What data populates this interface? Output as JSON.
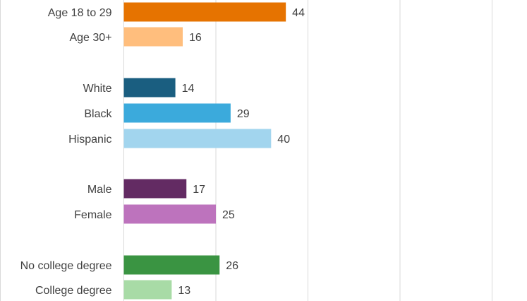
{
  "chart_data": {
    "type": "bar",
    "orientation": "horizontal",
    "title": "",
    "xlabel": "",
    "ylabel": "",
    "xlim": [
      0,
      100
    ],
    "grid": true,
    "legend": "none",
    "categories": [
      "Age 18 to 29",
      "Age 30+",
      "White",
      "Black",
      "Hispanic",
      "Male",
      "Female",
      "No college degree",
      "College degree"
    ],
    "values": [
      44,
      16,
      14,
      29,
      40,
      17,
      25,
      26,
      13
    ],
    "value_labels": [
      "44",
      "16",
      "14",
      "29",
      "40",
      "17",
      "25",
      "26",
      "13"
    ],
    "colors": [
      "#E67300",
      "#FFBE7D",
      "#1A5E80",
      "#3BAADC",
      "#A2D5EE",
      "#632B63",
      "#BD73BD",
      "#3A9442",
      "#A8DBA6"
    ]
  }
}
